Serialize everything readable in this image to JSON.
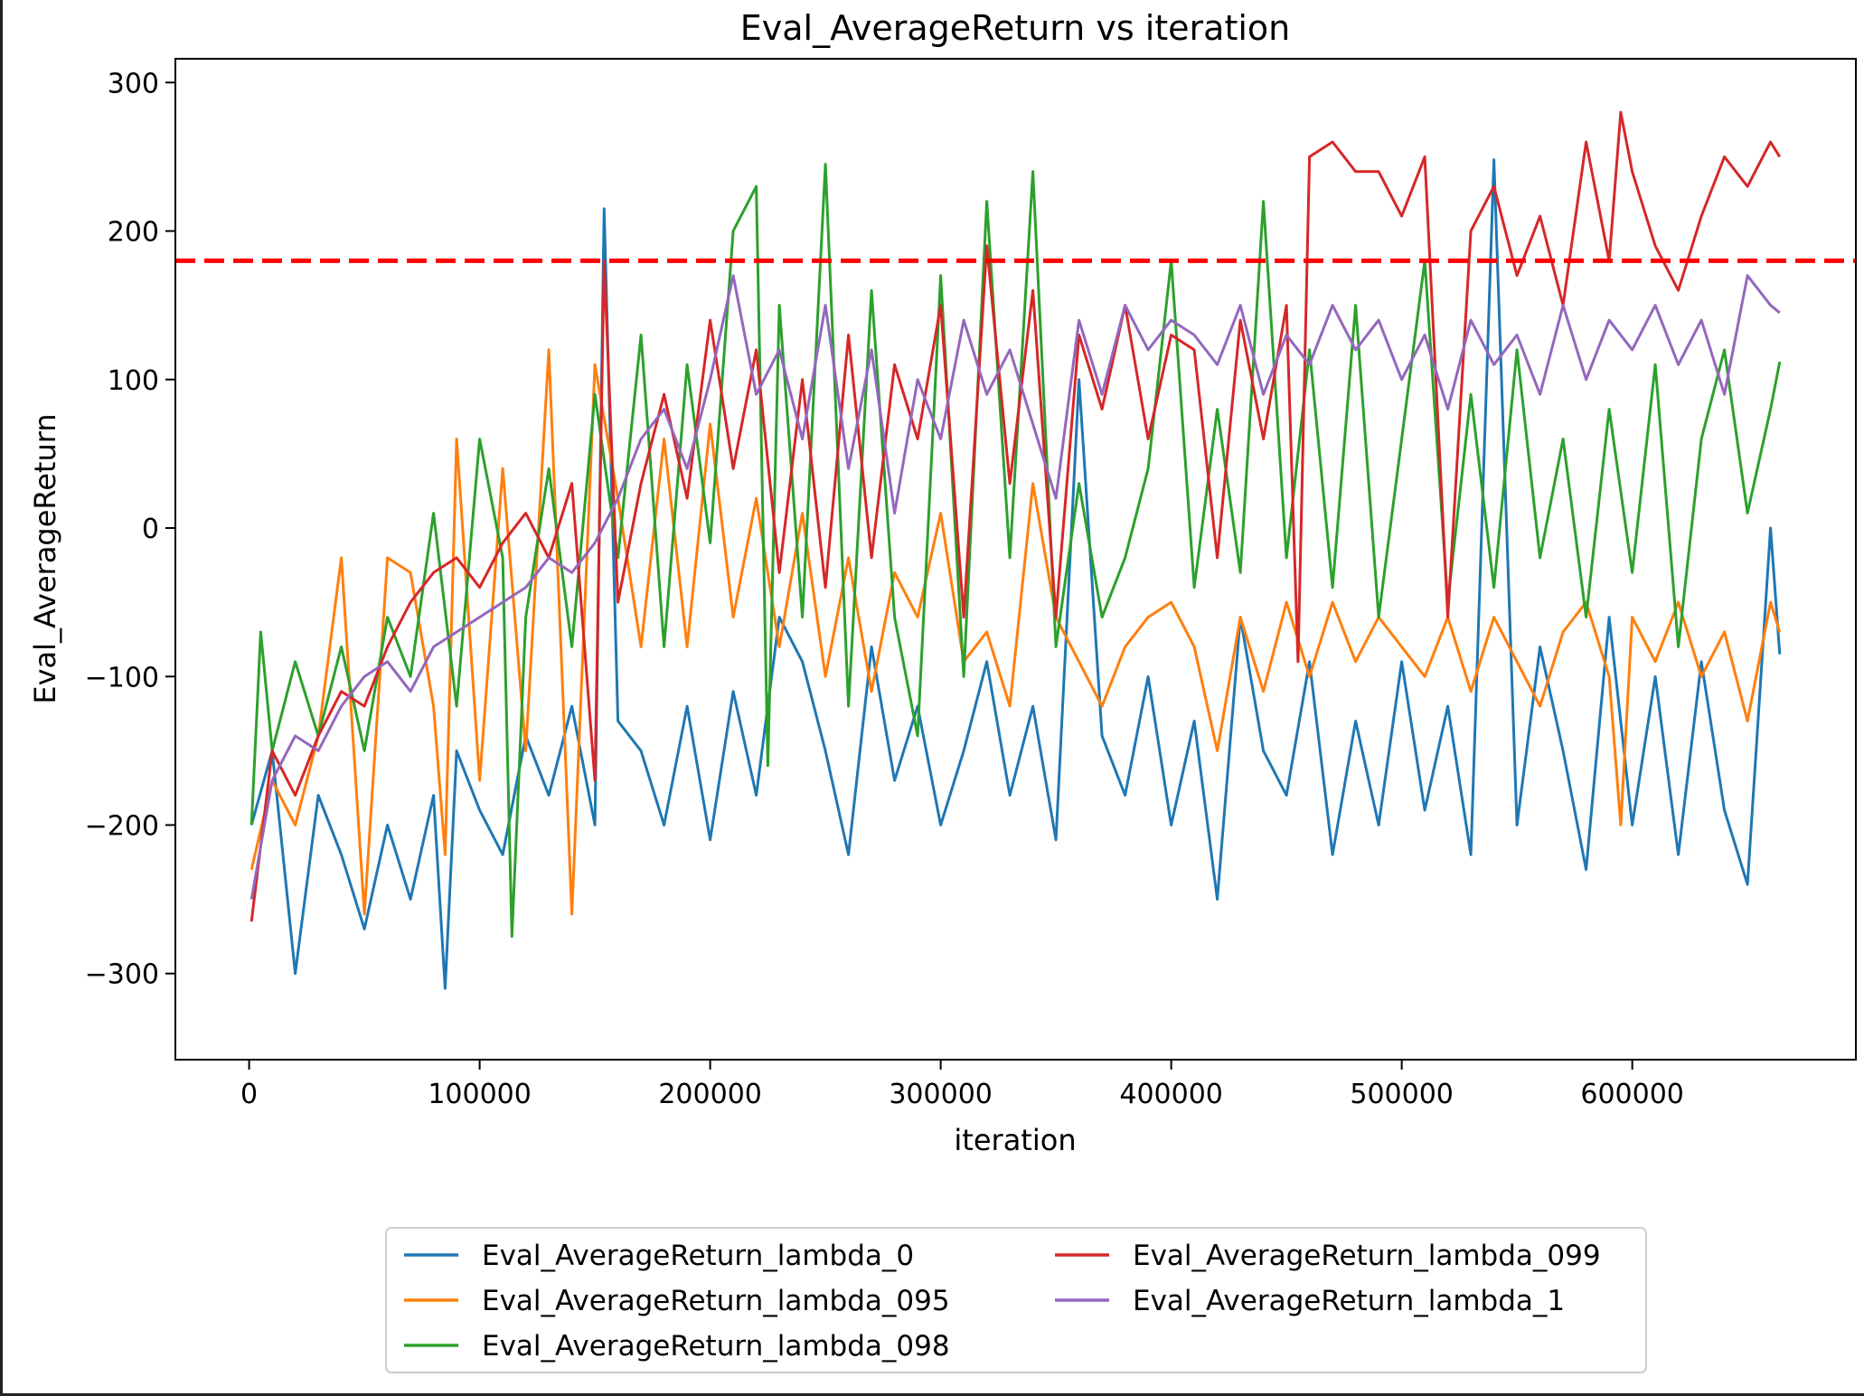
{
  "chart_data": {
    "type": "line",
    "title": "Eval_AverageReturn vs iteration",
    "xlabel": "iteration",
    "ylabel": "Eval_AverageReturn",
    "xlim": [
      -32000,
      697000
    ],
    "ylim": [
      -358,
      316
    ],
    "xticks": [
      0,
      100000,
      200000,
      300000,
      400000,
      500000,
      600000
    ],
    "xtick_labels": [
      "0",
      "100000",
      "200000",
      "300000",
      "400000",
      "500000",
      "600000"
    ],
    "yticks": [
      300,
      200,
      100,
      0,
      -100,
      -200,
      -300
    ],
    "ytick_labels": [
      "300",
      "200",
      "100",
      "0",
      "−100",
      "−200",
      "−300"
    ],
    "grid": false,
    "legend_position": "below-center",
    "reference_line": {
      "y": 180,
      "color": "#ff0000",
      "style": "dashed"
    },
    "series": [
      {
        "name": "Eval_AverageReturn_lambda_0",
        "color": "#1f77b4",
        "x": [
          1000,
          10000,
          20000,
          30000,
          40000,
          50000,
          60000,
          70000,
          80000,
          85000,
          90000,
          100000,
          110000,
          120000,
          130000,
          140000,
          150000,
          154000,
          160000,
          170000,
          180000,
          190000,
          200000,
          210000,
          220000,
          230000,
          240000,
          250000,
          260000,
          270000,
          280000,
          290000,
          300000,
          310000,
          320000,
          330000,
          340000,
          350000,
          360000,
          370000,
          380000,
          390000,
          400000,
          410000,
          420000,
          430000,
          440000,
          450000,
          460000,
          470000,
          480000,
          490000,
          500000,
          510000,
          520000,
          530000,
          540000,
          550000,
          560000,
          570000,
          580000,
          590000,
          600000,
          610000,
          620000,
          630000,
          640000,
          650000,
          660000,
          664000
        ],
        "y": [
          -200,
          -150,
          -300,
          -180,
          -220,
          -270,
          -200,
          -250,
          -180,
          -310,
          -150,
          -190,
          -220,
          -140,
          -180,
          -120,
          -200,
          215,
          -130,
          -150,
          -200,
          -120,
          -210,
          -110,
          -180,
          -60,
          -90,
          -150,
          -220,
          -80,
          -170,
          -120,
          -200,
          -150,
          -90,
          -180,
          -120,
          -210,
          100,
          -140,
          -180,
          -100,
          -200,
          -130,
          -250,
          -60,
          -150,
          -180,
          -90,
          -220,
          -130,
          -200,
          -90,
          -190,
          -120,
          -220,
          248,
          -200,
          -80,
          -150,
          -230,
          -60,
          -200,
          -100,
          -220,
          -90,
          -190,
          -240,
          0,
          -85
        ]
      },
      {
        "name": "Eval_AverageReturn_lambda_095",
        "color": "#ff7f0e",
        "x": [
          1000,
          10000,
          20000,
          30000,
          40000,
          50000,
          60000,
          70000,
          80000,
          85000,
          90000,
          100000,
          110000,
          120000,
          130000,
          140000,
          150000,
          160000,
          170000,
          180000,
          190000,
          200000,
          210000,
          220000,
          230000,
          240000,
          250000,
          260000,
          270000,
          280000,
          290000,
          300000,
          310000,
          320000,
          330000,
          340000,
          350000,
          360000,
          370000,
          380000,
          390000,
          400000,
          410000,
          420000,
          430000,
          440000,
          450000,
          460000,
          470000,
          480000,
          490000,
          500000,
          510000,
          520000,
          530000,
          540000,
          550000,
          560000,
          570000,
          580000,
          590000,
          595000,
          600000,
          610000,
          620000,
          630000,
          640000,
          650000,
          660000,
          664000
        ],
        "y": [
          -230,
          -170,
          -200,
          -140,
          -20,
          -260,
          -20,
          -30,
          -120,
          -220,
          60,
          -170,
          40,
          -150,
          120,
          -260,
          110,
          20,
          -80,
          60,
          -80,
          70,
          -60,
          20,
          -80,
          10,
          -100,
          -20,
          -110,
          -30,
          -60,
          10,
          -90,
          -70,
          -120,
          30,
          -60,
          -90,
          -120,
          -80,
          -60,
          -50,
          -80,
          -150,
          -60,
          -110,
          -50,
          -100,
          -50,
          -90,
          -60,
          -80,
          -100,
          -60,
          -110,
          -60,
          -90,
          -120,
          -70,
          -50,
          -100,
          -200,
          -60,
          -90,
          -50,
          -100,
          -70,
          -130,
          -50,
          -70
        ]
      },
      {
        "name": "Eval_AverageReturn_lambda_098",
        "color": "#2ca02c",
        "x": [
          1000,
          5000,
          10000,
          20000,
          30000,
          40000,
          50000,
          60000,
          70000,
          80000,
          90000,
          100000,
          110000,
          114000,
          120000,
          130000,
          140000,
          150000,
          160000,
          170000,
          180000,
          190000,
          200000,
          210000,
          220000,
          225000,
          230000,
          240000,
          250000,
          260000,
          270000,
          280000,
          290000,
          300000,
          310000,
          320000,
          330000,
          340000,
          350000,
          360000,
          370000,
          380000,
          390000,
          400000,
          410000,
          420000,
          430000,
          440000,
          450000,
          460000,
          470000,
          480000,
          490000,
          500000,
          510000,
          520000,
          530000,
          540000,
          550000,
          560000,
          570000,
          580000,
          590000,
          600000,
          610000,
          620000,
          630000,
          640000,
          650000,
          660000,
          664000
        ],
        "y": [
          -200,
          -70,
          -150,
          -90,
          -140,
          -80,
          -150,
          -60,
          -100,
          10,
          -120,
          60,
          -20,
          -275,
          -60,
          40,
          -80,
          90,
          -20,
          130,
          -80,
          110,
          -10,
          200,
          230,
          -160,
          150,
          -60,
          245,
          -120,
          160,
          -60,
          -140,
          170,
          -100,
          220,
          -20,
          240,
          -80,
          30,
          -60,
          -20,
          40,
          180,
          -40,
          80,
          -30,
          220,
          -20,
          120,
          -40,
          150,
          -60,
          60,
          180,
          -50,
          90,
          -40,
          120,
          -20,
          60,
          -60,
          80,
          -30,
          110,
          -80,
          60,
          120,
          10,
          80,
          112
        ]
      },
      {
        "name": "Eval_AverageReturn_lambda_099",
        "color": "#d62728",
        "x": [
          1000,
          10000,
          20000,
          30000,
          40000,
          50000,
          60000,
          70000,
          80000,
          90000,
          100000,
          110000,
          120000,
          130000,
          140000,
          150000,
          154000,
          160000,
          170000,
          180000,
          190000,
          200000,
          210000,
          220000,
          230000,
          240000,
          250000,
          260000,
          270000,
          280000,
          290000,
          300000,
          310000,
          320000,
          330000,
          340000,
          350000,
          360000,
          370000,
          380000,
          390000,
          400000,
          410000,
          420000,
          430000,
          440000,
          450000,
          455000,
          460000,
          470000,
          480000,
          490000,
          500000,
          510000,
          520000,
          530000,
          540000,
          550000,
          560000,
          570000,
          580000,
          590000,
          595000,
          600000,
          610000,
          620000,
          630000,
          640000,
          650000,
          660000,
          664000
        ],
        "y": [
          -265,
          -150,
          -180,
          -140,
          -110,
          -120,
          -80,
          -50,
          -30,
          -20,
          -40,
          -10,
          10,
          -20,
          30,
          -170,
          180,
          -50,
          30,
          90,
          20,
          140,
          40,
          120,
          -30,
          100,
          -40,
          130,
          -20,
          110,
          60,
          150,
          -60,
          190,
          30,
          160,
          -60,
          130,
          80,
          150,
          60,
          130,
          120,
          -20,
          140,
          60,
          150,
          -90,
          250,
          260,
          240,
          240,
          210,
          250,
          -60,
          200,
          230,
          170,
          210,
          150,
          260,
          180,
          280,
          240,
          190,
          160,
          210,
          250,
          230,
          260,
          250
        ]
      },
      {
        "name": "Eval_AverageReturn_lambda_1",
        "color": "#9467bd",
        "x": [
          1000,
          10000,
          20000,
          30000,
          40000,
          50000,
          60000,
          70000,
          80000,
          90000,
          100000,
          110000,
          120000,
          130000,
          140000,
          150000,
          160000,
          170000,
          180000,
          190000,
          200000,
          210000,
          220000,
          230000,
          240000,
          250000,
          260000,
          270000,
          280000,
          290000,
          300000,
          310000,
          320000,
          330000,
          340000,
          350000,
          360000,
          370000,
          380000,
          390000,
          400000,
          410000,
          420000,
          430000,
          440000,
          450000,
          460000,
          470000,
          480000,
          490000,
          500000,
          510000,
          520000,
          530000,
          540000,
          550000,
          560000,
          570000,
          580000,
          590000,
          600000,
          610000,
          620000,
          630000,
          640000,
          650000,
          660000,
          664000
        ],
        "y": [
          -250,
          -170,
          -140,
          -150,
          -120,
          -100,
          -90,
          -110,
          -80,
          -70,
          -60,
          -50,
          -40,
          -20,
          -30,
          -10,
          20,
          60,
          80,
          40,
          100,
          170,
          90,
          120,
          60,
          150,
          40,
          120,
          10,
          100,
          60,
          140,
          90,
          120,
          70,
          20,
          140,
          90,
          150,
          120,
          140,
          130,
          110,
          150,
          90,
          130,
          110,
          150,
          120,
          140,
          100,
          130,
          80,
          140,
          110,
          130,
          90,
          150,
          100,
          140,
          120,
          150,
          110,
          140,
          90,
          170,
          150,
          145
        ]
      }
    ]
  }
}
